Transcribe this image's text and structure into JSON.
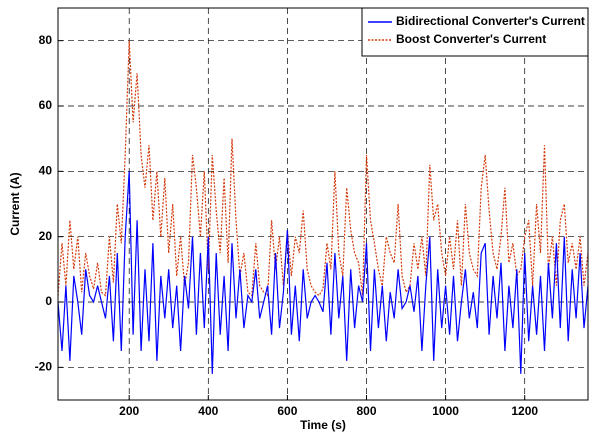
{
  "chart_data": {
    "type": "line",
    "xlabel": "Time (s)",
    "ylabel": "Current (A)",
    "x": [
      20,
      30,
      40,
      50,
      60,
      70,
      80,
      90,
      100,
      110,
      120,
      130,
      140,
      150,
      160,
      170,
      180,
      190,
      200,
      210,
      220,
      230,
      240,
      250,
      260,
      270,
      280,
      290,
      300,
      310,
      320,
      330,
      340,
      350,
      360,
      370,
      380,
      390,
      400,
      410,
      420,
      430,
      440,
      450,
      460,
      470,
      480,
      490,
      500,
      510,
      520,
      530,
      540,
      550,
      560,
      570,
      580,
      590,
      600,
      610,
      620,
      630,
      640,
      650,
      660,
      670,
      680,
      690,
      700,
      710,
      720,
      730,
      740,
      750,
      760,
      770,
      780,
      790,
      800,
      810,
      820,
      830,
      840,
      850,
      860,
      870,
      880,
      890,
      900,
      910,
      920,
      930,
      940,
      950,
      960,
      970,
      980,
      990,
      1000,
      1010,
      1020,
      1030,
      1040,
      1050,
      1060,
      1070,
      1080,
      1090,
      1100,
      1110,
      1120,
      1130,
      1140,
      1150,
      1160,
      1170,
      1180,
      1190,
      1200,
      1210,
      1220,
      1230,
      1240,
      1250,
      1260,
      1270,
      1280,
      1290,
      1300,
      1310,
      1320,
      1330,
      1340,
      1350,
      1360
    ],
    "series": [
      {
        "name": "Bidirectional Converter's Current",
        "color": "#0000ff",
        "dash": "solid",
        "values": [
          0,
          -15,
          5,
          -18,
          8,
          0,
          -10,
          10,
          2,
          0,
          5,
          0,
          -5,
          8,
          -12,
          15,
          -15,
          20,
          40,
          -10,
          25,
          -15,
          10,
          -12,
          18,
          -18,
          8,
          -5,
          10,
          -8,
          5,
          -15,
          8,
          -2,
          20,
          -10,
          15,
          -8,
          20,
          -22,
          15,
          -10,
          8,
          -15,
          18,
          -5,
          10,
          -8,
          2,
          0,
          10,
          -5,
          0,
          5,
          -10,
          15,
          -8,
          3,
          22,
          -10,
          5,
          -12,
          10,
          -5,
          0,
          2,
          0,
          -3,
          12,
          -10,
          15,
          -5,
          8,
          -18,
          10,
          -8,
          5,
          0,
          18,
          -15,
          10,
          -8,
          5,
          -12,
          3,
          -5,
          10,
          -2,
          0,
          5,
          -3,
          8,
          -15,
          5,
          20,
          -18,
          10,
          -8,
          5,
          -10,
          8,
          -12,
          0,
          10,
          -5,
          3,
          -8,
          15,
          18,
          -10,
          8,
          -5,
          12,
          -15,
          5,
          -8,
          10,
          -22,
          15,
          -12,
          5,
          -10,
          8,
          -15,
          12,
          -5,
          18,
          -8,
          20,
          -12,
          10,
          -5,
          15,
          -8,
          5
        ]
      },
      {
        "name": "Boost Converter's Current",
        "color": "#d43a0c",
        "dash": "dotted",
        "values": [
          2,
          18,
          5,
          25,
          10,
          20,
          3,
          15,
          8,
          4,
          12,
          3,
          2,
          20,
          6,
          30,
          18,
          45,
          80,
          55,
          70,
          45,
          35,
          48,
          25,
          40,
          20,
          38,
          15,
          30,
          8,
          20,
          5,
          12,
          45,
          35,
          20,
          40,
          10,
          45,
          28,
          15,
          38,
          12,
          50,
          25,
          8,
          15,
          3,
          2,
          18,
          5,
          3,
          2,
          25,
          10,
          20,
          5,
          22,
          8,
          20,
          15,
          28,
          10,
          5,
          3,
          2,
          4,
          18,
          10,
          40,
          15,
          8,
          35,
          22,
          15,
          12,
          2,
          45,
          25,
          18,
          10,
          5,
          20,
          15,
          12,
          30,
          8,
          3,
          5,
          18,
          10,
          20,
          8,
          42,
          25,
          30,
          15,
          8,
          20,
          10,
          25,
          5,
          30,
          15,
          10,
          8,
          35,
          45,
          28,
          15,
          10,
          20,
          35,
          12,
          18,
          8,
          10,
          20,
          25,
          5,
          30,
          15,
          48,
          10,
          20,
          5,
          25,
          30,
          12,
          18,
          10,
          20,
          5,
          15
        ]
      }
    ],
    "xlim": [
      20,
      1360
    ],
    "ylim": [
      -30,
      90
    ],
    "xticks": [
      200,
      400,
      600,
      800,
      1000,
      1200
    ],
    "yticks": [
      -20,
      0,
      20,
      40,
      60,
      80
    ],
    "grid": true,
    "legend": "northeast"
  }
}
